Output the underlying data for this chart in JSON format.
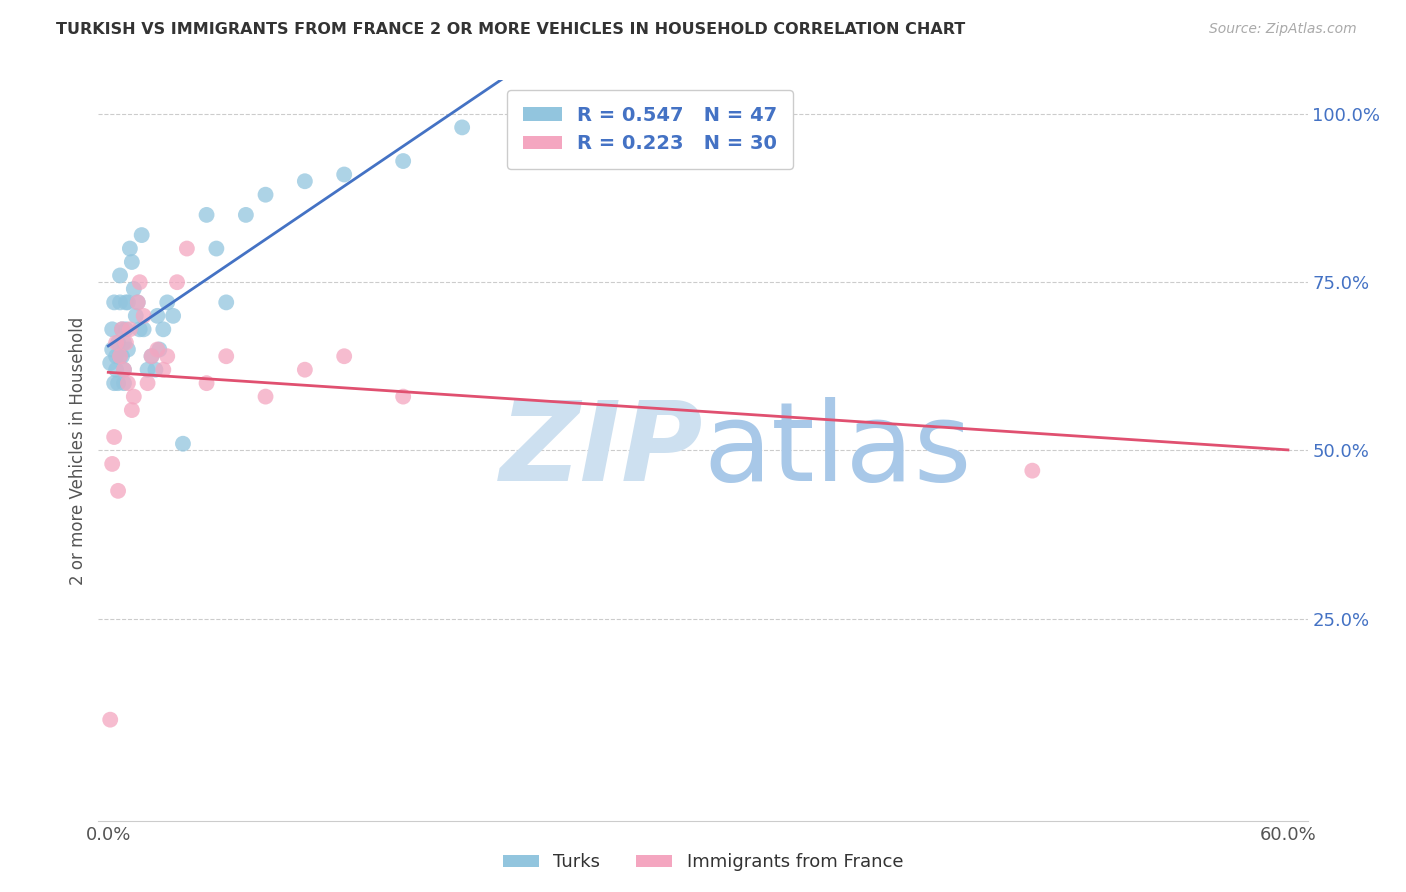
{
  "title": "TURKISH VS IMMIGRANTS FROM FRANCE 2 OR MORE VEHICLES IN HOUSEHOLD CORRELATION CHART",
  "source": "Source: ZipAtlas.com",
  "ylabel_label": "2 or more Vehicles in Household",
  "legend_labels": [
    "Turks",
    "Immigrants from France"
  ],
  "r_turks": 0.547,
  "n_turks": 47,
  "r_france": 0.223,
  "n_france": 30,
  "color_turks": "#92c5de",
  "color_france": "#f4a6c0",
  "color_turks_line": "#4472c4",
  "color_france_line": "#e05070",
  "color_legend_text": "#4472c4",
  "turks_x": [
    0.001,
    0.002,
    0.002,
    0.003,
    0.003,
    0.004,
    0.004,
    0.005,
    0.005,
    0.006,
    0.006,
    0.006,
    0.007,
    0.007,
    0.008,
    0.008,
    0.008,
    0.009,
    0.009,
    0.01,
    0.01,
    0.011,
    0.012,
    0.013,
    0.014,
    0.015,
    0.016,
    0.017,
    0.018,
    0.02,
    0.022,
    0.024,
    0.025,
    0.026,
    0.028,
    0.03,
    0.033,
    0.038,
    0.05,
    0.055,
    0.06,
    0.07,
    0.08,
    0.1,
    0.12,
    0.15,
    0.18
  ],
  "turks_y": [
    0.63,
    0.65,
    0.68,
    0.72,
    0.6,
    0.64,
    0.62,
    0.66,
    0.6,
    0.64,
    0.72,
    0.76,
    0.64,
    0.68,
    0.62,
    0.6,
    0.66,
    0.72,
    0.68,
    0.65,
    0.72,
    0.8,
    0.78,
    0.74,
    0.7,
    0.72,
    0.68,
    0.82,
    0.68,
    0.62,
    0.64,
    0.62,
    0.7,
    0.65,
    0.68,
    0.72,
    0.7,
    0.51,
    0.85,
    0.8,
    0.72,
    0.85,
    0.88,
    0.9,
    0.91,
    0.93,
    0.98
  ],
  "france_x": [
    0.001,
    0.002,
    0.003,
    0.004,
    0.005,
    0.006,
    0.007,
    0.008,
    0.009,
    0.01,
    0.011,
    0.012,
    0.013,
    0.015,
    0.016,
    0.018,
    0.02,
    0.022,
    0.025,
    0.028,
    0.03,
    0.035,
    0.04,
    0.05,
    0.06,
    0.08,
    0.1,
    0.12,
    0.15,
    0.47
  ],
  "france_y": [
    0.1,
    0.48,
    0.52,
    0.66,
    0.44,
    0.64,
    0.68,
    0.62,
    0.66,
    0.6,
    0.68,
    0.56,
    0.58,
    0.72,
    0.75,
    0.7,
    0.6,
    0.64,
    0.65,
    0.62,
    0.64,
    0.75,
    0.8,
    0.6,
    0.64,
    0.58,
    0.62,
    0.64,
    0.58,
    0.47
  ],
  "xlim": [
    0,
    0.6
  ],
  "ylim": [
    0,
    1.05
  ],
  "yticks": [
    0.25,
    0.5,
    0.75,
    1.0
  ],
  "xtick_labels_positions": [
    0.0,
    0.6
  ],
  "xtick_labels": [
    "0.0%",
    "60.0%"
  ],
  "ytick_labels": [
    "25.0%",
    "50.0%",
    "75.0%",
    "100.0%"
  ]
}
